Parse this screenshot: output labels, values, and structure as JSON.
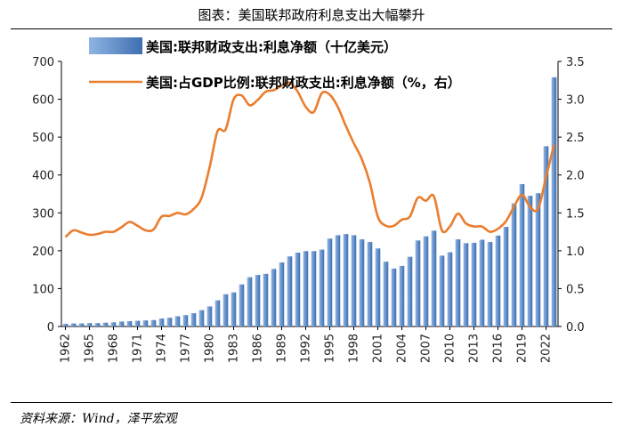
{
  "header": {
    "title": "图表：美国联邦政府利息支出大幅攀升"
  },
  "footer": {
    "source": "资料来源：Wind，泽平宏观"
  },
  "colors": {
    "bar": "#3f6fb0",
    "bar_light": "#8fb4e3",
    "line": "#ea7d2e",
    "axis": "#000000"
  },
  "chart_data": {
    "type": "bar+line",
    "title": "图表：美国联邦政府利息支出大幅攀升",
    "x": [
      1962,
      1963,
      1964,
      1965,
      1966,
      1967,
      1968,
      1969,
      1970,
      1971,
      1972,
      1973,
      1974,
      1975,
      1976,
      1977,
      1978,
      1979,
      1980,
      1981,
      1982,
      1983,
      1984,
      1985,
      1986,
      1987,
      1988,
      1989,
      1990,
      1991,
      1992,
      1993,
      1994,
      1995,
      1996,
      1997,
      1998,
      1999,
      2000,
      2001,
      2002,
      2003,
      2004,
      2005,
      2006,
      2007,
      2008,
      2009,
      2010,
      2011,
      2012,
      2013,
      2014,
      2015,
      2016,
      2017,
      2018,
      2019,
      2020,
      2021,
      2022,
      2023
    ],
    "xtick_labels": [
      "1962",
      "1965",
      "1968",
      "1971",
      "1974",
      "1977",
      "1980",
      "1983",
      "1986",
      "1989",
      "1992",
      "1995",
      "1998",
      "2001",
      "2004",
      "2007",
      "2010",
      "2013",
      "2016",
      "2019",
      "2022"
    ],
    "y_left": {
      "ylim": [
        0,
        700
      ],
      "ticks": [
        "0",
        "100",
        "200",
        "300",
        "400",
        "500",
        "600",
        "700"
      ]
    },
    "y_right": {
      "ylim": [
        0,
        3.5
      ],
      "ticks": [
        "0.0",
        "0.5",
        "1.0",
        "1.5",
        "2.0",
        "2.5",
        "3.0",
        "3.5"
      ]
    },
    "series": [
      {
        "name": "美国:联邦财政支出:利息净额（十亿美元）",
        "type": "bar",
        "axis": "left",
        "values": [
          7,
          8,
          8,
          9,
          9,
          10,
          11,
          13,
          14,
          15,
          16,
          17,
          21,
          23,
          27,
          30,
          35,
          43,
          53,
          69,
          85,
          90,
          111,
          130,
          136,
          139,
          152,
          169,
          185,
          195,
          199,
          199,
          203,
          232,
          241,
          244,
          241,
          230,
          223,
          206,
          171,
          153,
          160,
          184,
          227,
          238,
          253,
          187,
          196,
          230,
          220,
          221,
          229,
          223,
          240,
          263,
          325,
          376,
          345,
          352,
          476,
          658
        ]
      },
      {
        "name": "美国:占GDP比例:联邦财政支出:利息净额（%，右）",
        "type": "line",
        "axis": "right",
        "values": [
          1.18,
          1.27,
          1.24,
          1.21,
          1.22,
          1.25,
          1.25,
          1.31,
          1.38,
          1.33,
          1.27,
          1.28,
          1.45,
          1.46,
          1.5,
          1.48,
          1.55,
          1.7,
          2.1,
          2.58,
          2.6,
          3.0,
          3.05,
          2.92,
          2.99,
          3.1,
          3.12,
          3.18,
          3.22,
          3.1,
          2.9,
          2.83,
          3.08,
          3.06,
          2.9,
          2.65,
          2.42,
          2.21,
          1.9,
          1.45,
          1.33,
          1.33,
          1.41,
          1.45,
          1.7,
          1.66,
          1.72,
          1.27,
          1.32,
          1.49,
          1.36,
          1.32,
          1.32,
          1.25,
          1.29,
          1.39,
          1.58,
          1.74,
          1.58,
          1.55,
          1.97,
          2.4
        ]
      }
    ],
    "legend": {
      "position": "top",
      "entries": [
        "美国:联邦财政支出:利息净额（十亿美元）",
        "美国:占GDP比例:联邦财政支出:利息净额（%，右）"
      ]
    }
  }
}
